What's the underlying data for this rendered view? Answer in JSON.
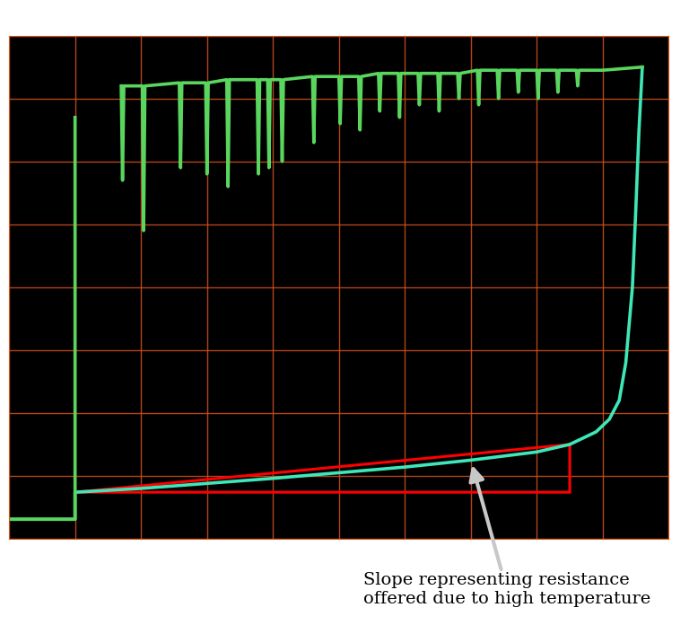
{
  "chart_data": {
    "type": "line",
    "xlim": [
      0,
      10
    ],
    "ylim": [
      0,
      8
    ],
    "xticks": [
      0,
      1,
      2,
      3,
      4,
      5,
      6,
      7,
      8,
      9,
      10
    ],
    "yticks": [
      0,
      1,
      2,
      3,
      4,
      5,
      6,
      7,
      8
    ],
    "grid": true,
    "tick_labels": false,
    "annotation": "Slope representing resistance offered due to high temperature",
    "series": [
      {
        "color": "#3fe6b8",
        "line_style": "solid",
        "x": [
          0,
          1.0,
          1.0,
          2,
          3,
          4,
          5,
          6,
          7,
          8,
          8.5,
          8.9,
          9.1,
          9.25,
          9.35,
          9.45,
          9.5,
          9.55,
          9.6
        ],
        "values": [
          0.31,
          0.31,
          0.74,
          0.8,
          0.88,
          0.96,
          1.05,
          1.14,
          1.25,
          1.38,
          1.5,
          1.7,
          1.9,
          2.2,
          2.8,
          4.0,
          5.2,
          6.5,
          7.5
        ]
      },
      {
        "color": "#5ad65e",
        "line_style": "solid",
        "x": [
          0,
          1.0,
          1.0,
          1.3,
          1.7,
          1.72,
          1.74,
          2.02,
          2.04,
          2.06,
          2.58,
          2.6,
          2.62,
          2.98,
          3.0,
          3.02,
          3.3,
          3.32,
          3.34,
          3.76,
          3.78,
          3.8,
          3.92,
          3.94,
          3.96,
          4.12,
          4.14,
          4.16,
          4.6,
          4.62,
          4.64,
          5.0,
          5.02,
          5.04,
          5.3,
          5.32,
          5.34,
          5.6,
          5.62,
          5.64,
          5.9,
          5.92,
          5.94,
          6.2,
          6.22,
          6.24,
          6.5,
          6.52,
          6.54,
          6.8,
          6.82,
          6.84,
          7.1,
          7.12,
          7.14,
          7.4,
          7.42,
          7.44,
          7.7,
          7.72,
          7.74,
          8.0,
          8.02,
          8.04,
          8.3,
          8.32,
          8.34,
          8.6,
          8.62,
          8.64,
          9.0,
          9.6
        ],
        "values": [
          0.31,
          0.31,
          6.7,
          null,
          7.2,
          5.7,
          7.2,
          7.2,
          4.9,
          7.2,
          7.25,
          5.9,
          7.25,
          7.25,
          5.8,
          7.25,
          7.3,
          5.6,
          7.3,
          7.3,
          5.8,
          7.3,
          7.3,
          5.9,
          7.3,
          7.3,
          6.0,
          7.3,
          7.35,
          6.3,
          7.35,
          7.35,
          6.6,
          7.35,
          7.35,
          6.5,
          7.35,
          7.4,
          6.8,
          7.4,
          7.4,
          6.7,
          7.4,
          7.4,
          6.9,
          7.4,
          7.4,
          6.8,
          7.4,
          7.4,
          7.0,
          7.4,
          7.45,
          6.9,
          7.45,
          7.45,
          7.0,
          7.45,
          7.45,
          7.1,
          7.45,
          7.45,
          7.0,
          7.45,
          7.45,
          7.1,
          7.45,
          7.45,
          7.2,
          7.45,
          7.45,
          7.5
        ]
      }
    ]
  }
}
